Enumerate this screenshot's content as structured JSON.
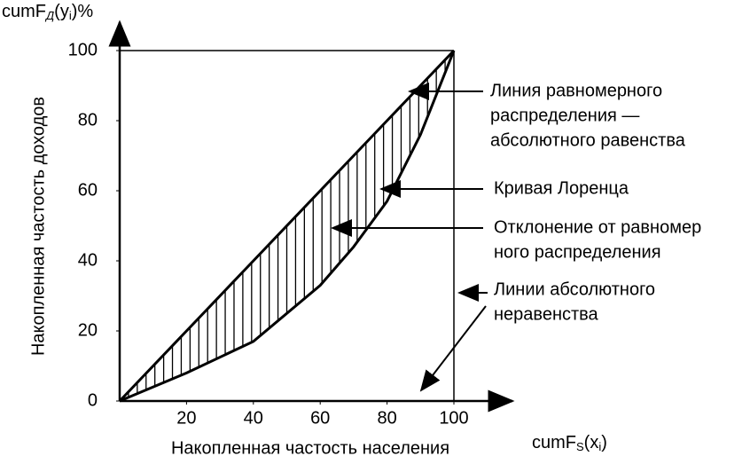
{
  "chart_data": {
    "type": "line",
    "y_axis_symbol": {
      "main": "cumF",
      "sub": "Д",
      "arg": "(y",
      "arg_sub": "i",
      "tail": ")%"
    },
    "x_axis_symbol": {
      "main": "cumF",
      "sub": "S",
      "arg": "(x",
      "arg_sub": "i",
      "tail": ")"
    },
    "y_label": "Накопленная частость доходов",
    "x_label": "Накопленная частость населения",
    "xlim": [
      0,
      100
    ],
    "ylim": [
      0,
      100
    ],
    "xticks": [
      20,
      40,
      60,
      80,
      100
    ],
    "yticks": [
      0,
      20,
      40,
      60,
      80,
      100
    ],
    "x": [
      0,
      20,
      40,
      60,
      70,
      80,
      90,
      100
    ],
    "series": [
      {
        "color": "#000000",
        "values": [
          0,
          20,
          40,
          60,
          70,
          80,
          90,
          100
        ]
      },
      {
        "color": "#000000",
        "values": [
          0,
          8,
          17,
          33,
          44,
          57,
          76,
          100
        ]
      }
    ],
    "annotations": [
      {
        "lines": [
          "Линия равномерного",
          "распределения —",
          "абсолютного равенства"
        ]
      },
      {
        "lines": [
          "Кривая Лоренца"
        ]
      },
      {
        "lines": [
          "Отклонение от равномер",
          "ного распределения"
        ]
      },
      {
        "lines": [
          "Линии абсолютного",
          "неравенства"
        ]
      }
    ]
  }
}
